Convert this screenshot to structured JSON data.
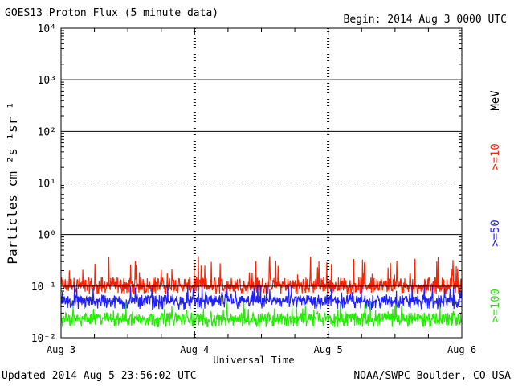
{
  "header": {
    "title": "GOES13 Proton Flux (5 minute data)",
    "begin": "Begin: 2014 Aug 3 0000 UTC"
  },
  "footer": {
    "updated": "Updated 2014 Aug  5 23:56:02 UTC",
    "credit": "NOAA/SWPC Boulder, CO USA"
  },
  "chart_data": {
    "type": "line",
    "title": "GOES13 Proton Flux (5 minute data)",
    "xlabel": "Universal Time",
    "ylabel": "Particles cm⁻²s⁻¹sr⁻¹",
    "yscale": "log",
    "ylim": [
      0.01,
      10000
    ],
    "yticks": [
      "10⁻²",
      "10⁻¹",
      "10⁰",
      "10¹",
      "10²",
      "10³",
      "10⁴"
    ],
    "x_categories": [
      "Aug 3",
      "Aug 4",
      "Aug 5",
      "Aug 6"
    ],
    "xlim": [
      "2014-08-03 00:00",
      "2014-08-06 00:00"
    ],
    "threshold_lines": [
      {
        "value": 10,
        "style": "dashed"
      }
    ],
    "units_label": "MeV",
    "series": [
      {
        "name": ">=10",
        "color": "#ff2200",
        "typical": 0.11,
        "range": [
          0.07,
          0.4
        ]
      },
      {
        "name": ">=50",
        "color": "#2020ff",
        "typical": 0.055,
        "range": [
          0.035,
          0.11
        ]
      },
      {
        "name": ">=100",
        "color": "#22ee00",
        "typical": 0.025,
        "range": [
          0.016,
          0.05
        ]
      }
    ]
  }
}
